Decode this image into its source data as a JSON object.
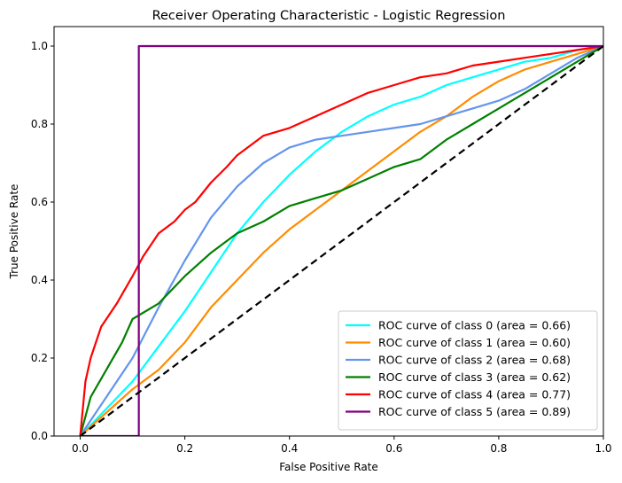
{
  "chart_data": {
    "type": "line",
    "title": "Receiver Operating Characteristic - Logistic Regression",
    "xlabel": "False Positive Rate",
    "ylabel": "True Positive Rate",
    "xlim": [
      -0.05,
      1.0
    ],
    "ylim": [
      0.0,
      1.05
    ],
    "x_ticks": [
      "0.0",
      "0.2",
      "0.4",
      "0.6",
      "0.8",
      "1.0"
    ],
    "y_ticks": [
      "0.0",
      "0.2",
      "0.4",
      "0.6",
      "0.8",
      "1.0"
    ],
    "grid": false,
    "legend_position": "lower-right",
    "diagonal": {
      "color": "#000000",
      "style": "dashed",
      "x": [
        0,
        1
      ],
      "y": [
        0,
        1
      ]
    },
    "series": [
      {
        "name": "ROC curve of class 0 (area = 0.66)",
        "color": "#00ffff",
        "x": [
          0.0,
          0.05,
          0.1,
          0.15,
          0.2,
          0.25,
          0.3,
          0.35,
          0.4,
          0.45,
          0.5,
          0.55,
          0.6,
          0.65,
          0.7,
          0.75,
          0.8,
          0.85,
          0.9,
          0.95,
          1.0
        ],
        "y": [
          0.0,
          0.07,
          0.14,
          0.23,
          0.32,
          0.42,
          0.52,
          0.6,
          0.67,
          0.73,
          0.78,
          0.82,
          0.85,
          0.87,
          0.9,
          0.92,
          0.94,
          0.96,
          0.97,
          0.99,
          1.0
        ]
      },
      {
        "name": "ROC curve of class 1 (area = 0.60)",
        "color": "#ff8c00",
        "x": [
          0.0,
          0.05,
          0.1,
          0.15,
          0.2,
          0.25,
          0.3,
          0.35,
          0.4,
          0.45,
          0.5,
          0.55,
          0.6,
          0.65,
          0.7,
          0.75,
          0.8,
          0.85,
          0.9,
          0.95,
          1.0
        ],
        "y": [
          0.0,
          0.06,
          0.12,
          0.17,
          0.24,
          0.33,
          0.4,
          0.47,
          0.53,
          0.58,
          0.63,
          0.68,
          0.73,
          0.78,
          0.82,
          0.87,
          0.91,
          0.94,
          0.96,
          0.98,
          1.0
        ]
      },
      {
        "name": "ROC curve of class 2 (area = 0.68)",
        "color": "#6495ed",
        "x": [
          0.0,
          0.05,
          0.1,
          0.15,
          0.2,
          0.25,
          0.3,
          0.35,
          0.4,
          0.45,
          0.5,
          0.55,
          0.6,
          0.65,
          0.7,
          0.75,
          0.8,
          0.85,
          0.9,
          0.95,
          1.0
        ],
        "y": [
          0.0,
          0.1,
          0.2,
          0.33,
          0.45,
          0.56,
          0.64,
          0.7,
          0.74,
          0.76,
          0.77,
          0.78,
          0.79,
          0.8,
          0.82,
          0.84,
          0.86,
          0.89,
          0.93,
          0.97,
          1.0
        ]
      },
      {
        "name": "ROC curve of class 3 (area = 0.62)",
        "color": "#008000",
        "x": [
          0.0,
          0.02,
          0.05,
          0.08,
          0.1,
          0.15,
          0.2,
          0.25,
          0.3,
          0.35,
          0.4,
          0.45,
          0.5,
          0.55,
          0.6,
          0.65,
          0.7,
          0.75,
          0.8,
          0.85,
          0.9,
          0.95,
          1.0
        ],
        "y": [
          0.0,
          0.1,
          0.17,
          0.24,
          0.3,
          0.34,
          0.41,
          0.47,
          0.52,
          0.55,
          0.59,
          0.61,
          0.63,
          0.66,
          0.69,
          0.71,
          0.76,
          0.8,
          0.84,
          0.88,
          0.92,
          0.96,
          1.0
        ]
      },
      {
        "name": "ROC curve of class 4 (area = 0.77)",
        "color": "#ff0000",
        "x": [
          0.0,
          0.01,
          0.02,
          0.03,
          0.04,
          0.05,
          0.07,
          0.1,
          0.12,
          0.15,
          0.18,
          0.2,
          0.22,
          0.25,
          0.28,
          0.3,
          0.35,
          0.4,
          0.45,
          0.5,
          0.55,
          0.6,
          0.65,
          0.7,
          0.75,
          0.8,
          0.85,
          0.9,
          0.95,
          1.0
        ],
        "y": [
          0.0,
          0.14,
          0.2,
          0.24,
          0.28,
          0.3,
          0.34,
          0.41,
          0.46,
          0.52,
          0.55,
          0.58,
          0.6,
          0.65,
          0.69,
          0.72,
          0.77,
          0.79,
          0.82,
          0.85,
          0.88,
          0.9,
          0.92,
          0.93,
          0.95,
          0.96,
          0.97,
          0.98,
          0.99,
          1.0
        ]
      },
      {
        "name": "ROC curve of class 5 (area = 0.89)",
        "color": "#800080",
        "x": [
          0.0,
          0.112,
          0.112,
          1.0
        ],
        "y": [
          0.0,
          0.0,
          1.0,
          1.0
        ]
      }
    ]
  }
}
